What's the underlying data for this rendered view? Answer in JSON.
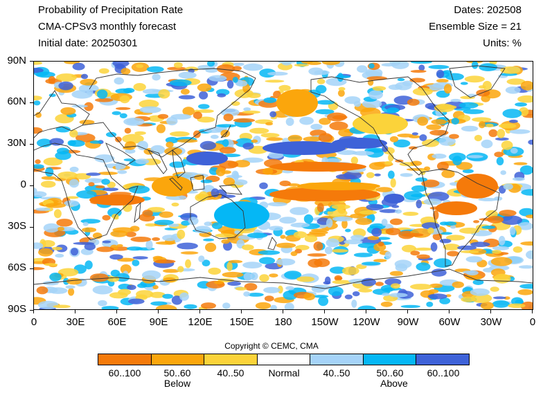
{
  "header": {
    "title": "Probability of Precipitation Rate",
    "subtitle": "CMA-CPSv3 monthly forecast",
    "initial_date": "Initial date: 20250301",
    "dates": "Dates: 202508",
    "ensemble": "Ensemble Size = 21",
    "units": "Units: %"
  },
  "map": {
    "y_ticks": [
      "90N",
      "60N",
      "30N",
      "0",
      "30S",
      "60S",
      "90S"
    ],
    "x_ticks": [
      "0",
      "30E",
      "60E",
      "90E",
      "120E",
      "150E",
      "180",
      "150W",
      "120W",
      "90W",
      "60W",
      "30W",
      "0"
    ],
    "coastline_color": "#333333"
  },
  "copyright": "Copyright © CEMC, CMA",
  "legend": {
    "categories": [
      {
        "label": "60..100",
        "color": "#f57a0a",
        "category": "below"
      },
      {
        "label": "50..60",
        "color": "#fba60c",
        "category": "below"
      },
      {
        "label": "40..50",
        "color": "#fbd33a",
        "category": "below"
      },
      {
        "label": "Normal",
        "color": "#ffffff",
        "category": "normal"
      },
      {
        "label": "40..50",
        "color": "#a5d3f8",
        "category": "above"
      },
      {
        "label": "50..60",
        "color": "#05b7f5",
        "category": "above"
      },
      {
        "label": "60..100",
        "color": "#3e62d8",
        "category": "above"
      }
    ],
    "below_label": "Below",
    "above_label": "Above"
  }
}
